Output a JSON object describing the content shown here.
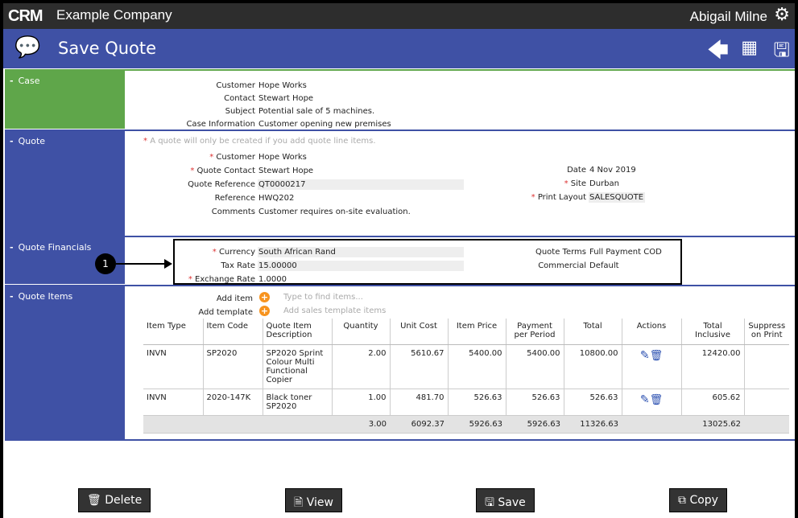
{
  "topbar": {
    "logo": "CRM",
    "company": "Example Company",
    "user": "Abigail Milne"
  },
  "header": {
    "title": "Save Quote"
  },
  "case": {
    "label": "Case",
    "fields": [
      [
        "Customer",
        "Hope Works"
      ],
      [
        "Contact",
        "Stewart Hope"
      ],
      [
        "Subject",
        "Potential sale of 5 machines."
      ],
      [
        "Case Information",
        "Customer opening new premises"
      ]
    ]
  },
  "quote": {
    "label": "Quote",
    "note": "A quote will only be created if you add quote line items.",
    "left": [
      [
        "Customer",
        "Hope Works",
        true
      ],
      [
        "Quote Contact",
        "Stewart Hope",
        true
      ],
      [
        "Quote Reference",
        "QT0000217",
        false
      ],
      [
        "Reference",
        "HWQ202",
        false
      ],
      [
        "Comments",
        "Customer requires on-site evaluation.",
        false
      ]
    ],
    "right": [
      [
        "Date",
        "4 Nov 2019",
        false
      ],
      [
        "Site",
        "Durban",
        true
      ],
      [
        "Print Layout",
        "SALESQUOTE",
        true
      ]
    ]
  },
  "financials": {
    "label": "Quote Financials",
    "callout": "1",
    "left": [
      [
        "Currency",
        "South African Rand",
        true
      ],
      [
        "Tax Rate",
        "15.00000",
        false
      ],
      [
        "Exchange Rate",
        "1.0000",
        true
      ]
    ],
    "right": [
      [
        "Quote Terms",
        "Full Payment COD"
      ],
      [
        "Commercial",
        "Default"
      ]
    ]
  },
  "items": {
    "label": "Quote Items",
    "add_item": "Add item",
    "add_item_placeholder": "Type to find items...",
    "add_template": "Add template",
    "add_template_placeholder": "Add sales template items",
    "columns": [
      "Item Type",
      "Item Code",
      "Quote Item Description",
      "Quantity",
      "Unit Cost",
      "Item Price",
      "Payment per Period",
      "Total",
      "Actions",
      "Total Inclusive",
      "Suppress on Print"
    ],
    "rows": [
      [
        "INVN",
        "SP2020",
        "SP2020 Sprint Colour Multi Functional Copier",
        "2.00",
        "5610.67",
        "5400.00",
        "5400.00",
        "10800.00",
        "",
        "12420.00",
        ""
      ],
      [
        "INVN",
        "2020-147K",
        "Black toner SP2020",
        "1.00",
        "481.70",
        "526.63",
        "526.63",
        "526.63",
        "",
        "605.62",
        ""
      ]
    ],
    "totals": [
      "",
      "",
      "",
      "3.00",
      "6092.37",
      "5926.63",
      "5926.63",
      "11326.63",
      "",
      "13025.62",
      ""
    ]
  },
  "buttons": {
    "delete": "Delete",
    "view": "View",
    "save": "Save",
    "copy": "Copy"
  },
  "colors": {
    "header": "#3f51a5",
    "case": "#5fa64a",
    "topbar": "#2d2d2d",
    "add": "#f7931e"
  }
}
